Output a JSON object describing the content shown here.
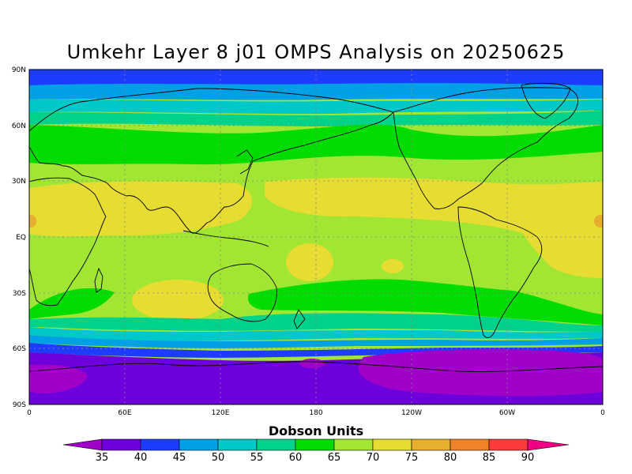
{
  "title": "Umkehr Layer 8 j01 OMPS Analysis on 20250625",
  "map": {
    "projection": "equirectangular",
    "lon_range": [
      0,
      360
    ],
    "lat_range": [
      -90,
      90
    ],
    "grid_lines": "dotted",
    "lat_labels": [
      "90N",
      "60N",
      "30N",
      "EQ",
      "30S",
      "60S",
      "90S"
    ],
    "lon_labels": [
      "0",
      "60E",
      "120E",
      "180",
      "120W",
      "60W",
      "0"
    ],
    "field": "ozone"
  },
  "colorbar": {
    "title": "Dobson Units",
    "levels": [
      "35",
      "40",
      "45",
      "50",
      "55",
      "60",
      "65",
      "70",
      "75",
      "80",
      "85",
      "90"
    ],
    "colors": [
      "#a000c8",
      "#6e00dc",
      "#1e3cff",
      "#00a0e6",
      "#00c8c8",
      "#00d28c",
      "#00dc00",
      "#a0e632",
      "#e6dc32",
      "#e6af2d",
      "#f08228",
      "#fa3c3c",
      "#f00082"
    ]
  }
}
